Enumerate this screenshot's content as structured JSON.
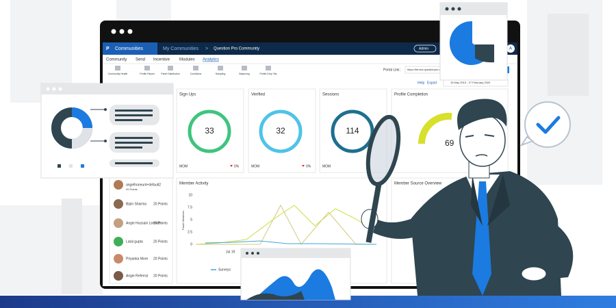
{
  "nav": {
    "product": "Communities",
    "breadcrumb": "My Communities",
    "separator": ">",
    "community": "Question Pro Community",
    "user": "Admin",
    "avatar": "A"
  },
  "tabs": [
    "Community",
    "Send",
    "Incentive",
    "Modules",
    "Analytics"
  ],
  "tools": [
    "Community Health",
    "Profile Report",
    "Panel Distribution",
    "Conditions",
    "Sampling",
    "Balancing",
    "Profile Drop Tab"
  ],
  "portal": {
    "label": "Portal Link :",
    "url": "https://ferond.questionpro.com"
  },
  "actions": {
    "help": "Help",
    "export": "Export",
    "date_range": "15 May 2019 - 27 February 2020"
  },
  "cards": [
    {
      "title": "Sign Ups",
      "value": 33,
      "period": "MOM",
      "change": "0%"
    },
    {
      "title": "Verified",
      "value": 32,
      "period": "MOM",
      "change": "0%"
    },
    {
      "title": "Sessions",
      "value": 114,
      "period": "MOM"
    },
    {
      "title": "Profile Completion",
      "value": 69
    }
  ],
  "members": [
    {
      "name": "angelhoneunt+default2",
      "points": "20 Points"
    },
    {
      "name": "Bipin Sharma",
      "points": "20 Points"
    },
    {
      "name": "Angie Hussain Leender",
      "points": "20 Points"
    },
    {
      "name": "Latal gupta",
      "points": "20 Points"
    },
    {
      "name": "Priyanka More",
      "points": "20 Points"
    },
    {
      "name": "Angie Referral",
      "points": "20 Points"
    }
  ],
  "activity": {
    "title": "Member Activity",
    "axis_label": "Panel Members",
    "yticks": [
      "10",
      "7.5",
      "5",
      "2.5",
      "0"
    ],
    "x_label": "Jul 19",
    "legend": "Surveys"
  },
  "source": {
    "title": "Member Source Overview"
  }
}
